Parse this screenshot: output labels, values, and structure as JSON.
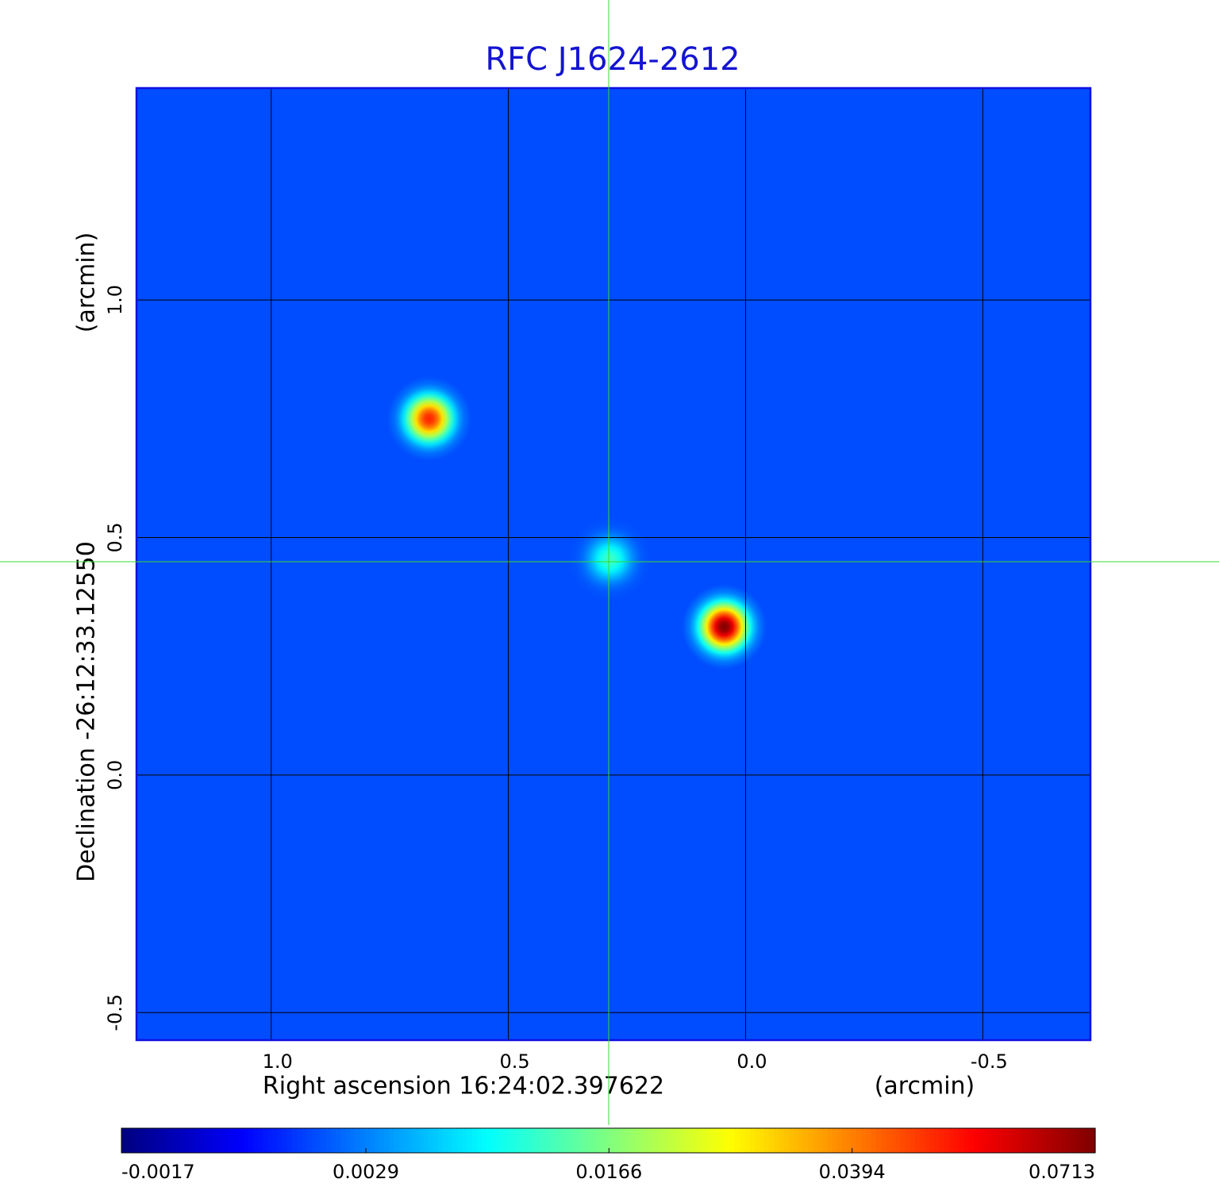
{
  "chart_data": {
    "type": "image",
    "title": "RFC J1624-2612",
    "x_label": "Right ascension  16:24:02.397622",
    "x_unit": "(arcmin)",
    "y_label": "Declination  -26:12:33.12550",
    "y_unit": "(arcmin)",
    "xlim": [
      1.284,
      -0.727
    ],
    "ylim": [
      -0.558,
      1.446
    ],
    "xticks": [
      {
        "value": 1,
        "label": "1.0"
      },
      0.5,
      {
        "value": 0,
        "label": "0.0"
      },
      -0.5
    ],
    "yticks": [
      -0.5,
      {
        "value": 0,
        "label": "0.0"
      },
      0.5,
      {
        "value": 1,
        "label": "1.0"
      }
    ],
    "grid": true,
    "colormap": "jet",
    "colorbar": {
      "clim": [
        -0.0017,
        0.0713
      ],
      "scale": "sqrt",
      "ticks": [
        -0.0017,
        0.0029,
        0.0166,
        0.0394,
        0.0713
      ]
    },
    "background_level": 0.0012,
    "sources": [
      {
        "x": 0.667,
        "y": 0.75,
        "peak": 0.05
      },
      {
        "x": 0.286,
        "y": 0.454,
        "peak": 0.012
      },
      {
        "x": 0.045,
        "y": 0.312,
        "peak": 0.0713
      }
    ]
  }
}
